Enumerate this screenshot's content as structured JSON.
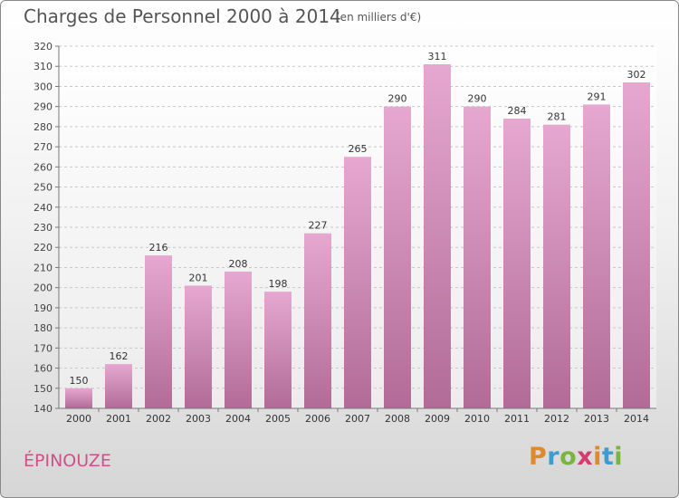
{
  "header": {
    "title": "Charges de Personnel 2000 à 2014",
    "subtitle": "(en milliers d'€)"
  },
  "footer": {
    "place": "ÉPINOUZE",
    "logo_letters": [
      {
        "ch": "P",
        "color": "#e0892a"
      },
      {
        "ch": "r",
        "color": "#3c9dd0"
      },
      {
        "ch": "o",
        "color": "#7ab63f"
      },
      {
        "ch": "x",
        "color": "#d63b6e"
      },
      {
        "ch": "i",
        "color": "#e0892a"
      },
      {
        "ch": "t",
        "color": "#3c9dd0"
      },
      {
        "ch": "i",
        "color": "#7ab63f"
      }
    ]
  },
  "chart_data": {
    "type": "bar",
    "title": "Charges de Personnel 2000 à 2014",
    "subtitle": "(en milliers d'€)",
    "xlabel": "",
    "ylabel": "",
    "categories": [
      "2000",
      "2001",
      "2002",
      "2003",
      "2004",
      "2005",
      "2006",
      "2007",
      "2008",
      "2009",
      "2010",
      "2011",
      "2012",
      "2013",
      "2014"
    ],
    "values": [
      150,
      162,
      216,
      201,
      208,
      198,
      227,
      265,
      290,
      311,
      290,
      284,
      281,
      291,
      302
    ],
    "ylim": [
      140,
      320
    ],
    "yticks": [
      140,
      150,
      160,
      170,
      180,
      190,
      200,
      210,
      220,
      230,
      240,
      250,
      260,
      270,
      280,
      290,
      300,
      310,
      320
    ],
    "grid": true,
    "bar_color_top": "#e6a8d0",
    "bar_color_bottom": "#b06c96"
  }
}
